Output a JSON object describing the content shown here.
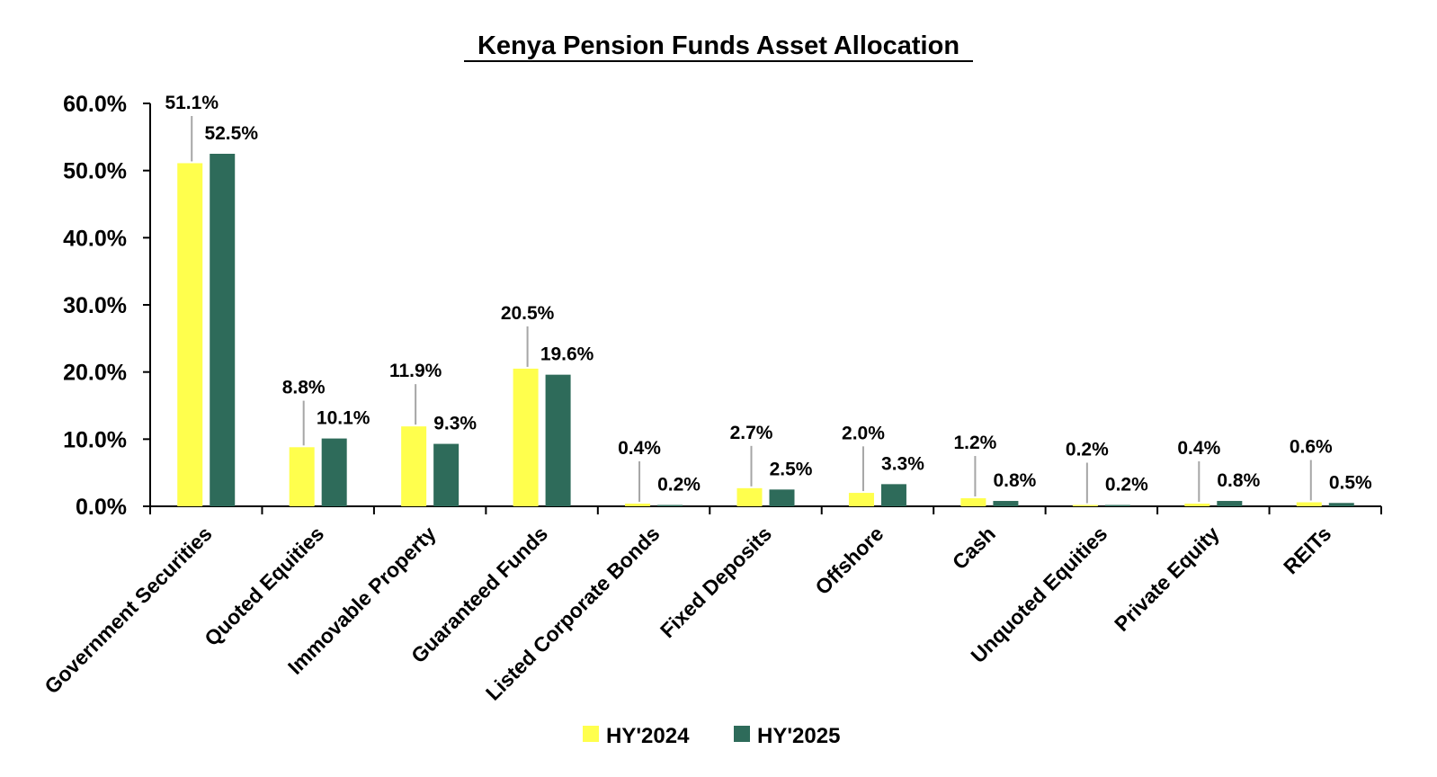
{
  "chart_data": {
    "type": "bar",
    "title": "Kenya Pension Funds Asset Allocation",
    "xlabel": "",
    "ylabel": "",
    "ylim": [
      0,
      60
    ],
    "yticks": [
      "0.0%",
      "10.0%",
      "20.0%",
      "30.0%",
      "40.0%",
      "50.0%",
      "60.0%"
    ],
    "categories": [
      "Government Securities",
      "Quoted Equities",
      "Immovable Property",
      "Guaranteed Funds",
      "Listed Corporate Bonds",
      "Fixed Deposits",
      "Offshore",
      "Cash",
      "Unquoted Equities",
      "Private Equity",
      "REITs"
    ],
    "series": [
      {
        "name": "HY'2024",
        "color": "#ffff4d",
        "values": [
          51.1,
          8.8,
          11.9,
          20.5,
          0.4,
          2.7,
          2.0,
          1.2,
          0.2,
          0.4,
          0.6
        ],
        "labels": [
          "51.1%",
          "8.8%",
          "11.9%",
          "20.5%",
          "0.4%",
          "2.7%",
          "2.0%",
          "1.2%",
          "0.2%",
          "0.4%",
          "0.6%"
        ]
      },
      {
        "name": "HY'2025",
        "color": "#2e6b5a",
        "values": [
          52.5,
          10.1,
          9.3,
          19.6,
          0.2,
          2.5,
          3.3,
          0.8,
          0.2,
          0.8,
          0.5
        ],
        "labels": [
          "52.5%",
          "10.1%",
          "9.3%",
          "19.6%",
          "0.2%",
          "2.5%",
          "3.3%",
          "0.8%",
          "0.2%",
          "0.8%",
          "0.5%"
        ]
      }
    ],
    "legend": "bottom-center",
    "grid": false
  }
}
